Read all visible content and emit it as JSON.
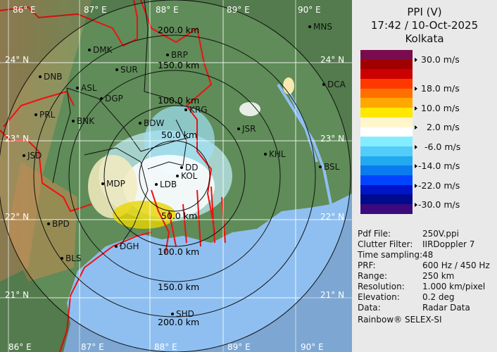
{
  "header": {
    "product": "PPI (V)",
    "datetime": "17:42 / 10-Oct-2025",
    "site": "Kolkata"
  },
  "legend": {
    "colors": [
      "#7a0c4e",
      "#a00000",
      "#cc0000",
      "#ff3800",
      "#ff7000",
      "#ffa800",
      "#ffe800",
      "#fff6cc",
      "#ffffff",
      "#84ecff",
      "#52cdfa",
      "#22aaf0",
      "#0a7cf0",
      "#0044ff",
      "#0014c8",
      "#000a8c",
      "#3c0a7c"
    ],
    "labels": [
      "30.0 m/s",
      "18.0 m/s",
      "10.0 m/s",
      "2.0 m/s",
      "-6.0 m/s",
      "-14.0 m/s",
      "-22.0 m/s",
      "-30.0 m/s"
    ]
  },
  "info": [
    {
      "key": "Pdf File:",
      "value": "250V.ppi"
    },
    {
      "key": "Clutter Filter:",
      "value": "IIRDoppler 7"
    },
    {
      "key": "Time sampling:",
      "value": "48"
    },
    {
      "key": "PRF:",
      "value": "600 Hz / 450 Hz"
    },
    {
      "key": "Range:",
      "value": "250 km"
    },
    {
      "key": "Resolution:",
      "value": "1.000 km/pixel"
    },
    {
      "key": "Elevation:",
      "value": "0.2 deg"
    },
    {
      "key": "Data:",
      "value": "Radar Data"
    }
  ],
  "credit": "Rainbow® SELEX-SI",
  "map": {
    "longitudes": [
      "86° E",
      "87° E",
      "88° E",
      "89° E",
      "90° E"
    ],
    "latitudes": [
      "24° N",
      "23° N",
      "22° N",
      "21° N"
    ],
    "range_rings": [
      "200.0 km",
      "150.0 km",
      "100.0 km",
      "50.0 km",
      "50.0 km",
      "100.0 km",
      "150.0 km",
      "200.0 km"
    ],
    "stations": [
      "MNS",
      "DMK",
      "BRP",
      "DNB",
      "SUR",
      "ASL",
      "DGP",
      "DCA",
      "KRG",
      "PRL",
      "BNK",
      "BDW",
      "JSR",
      "KHL",
      "JSD",
      "BSL",
      "DD",
      "KOL",
      "LDB",
      "MDP",
      "BPD",
      "BLS",
      "DGH",
      "SHD"
    ]
  }
}
